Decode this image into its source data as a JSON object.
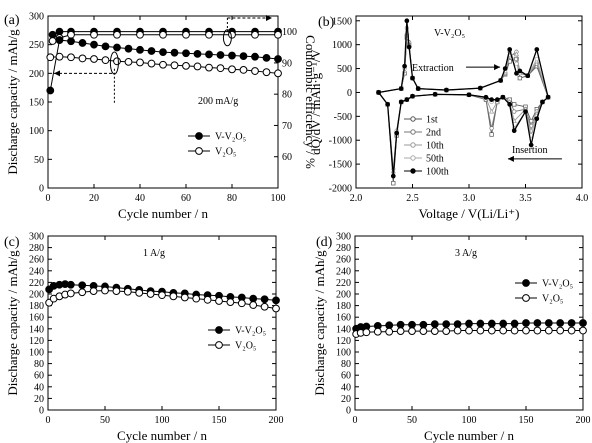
{
  "figure": {
    "chart_data": [
      {
        "id": "a",
        "panel_label": "(a)",
        "type": "scatter",
        "x_title": "Cycle number / n",
        "y_title": "Discharge capacity / mAh/g",
        "y2_title": "Coulombic efficiency / %",
        "rate_label": "200 mA/g",
        "xlim": [
          0,
          100
        ],
        "ylim": [
          0,
          300
        ],
        "y2lim": [
          50,
          105
        ],
        "xticks": [
          "0",
          "20",
          "40",
          "60",
          "80",
          "100"
        ],
        "yticks": [
          "0",
          "50",
          "100",
          "150",
          "200",
          "250",
          "300"
        ],
        "y2ticks": [
          "60",
          "70",
          "80",
          "90",
          "100"
        ],
        "grid": false,
        "legend_position": "lower-right",
        "series": [
          {
            "name": "V-V2O5",
            "legend_label": "V-V₂O₅",
            "marker": "filled",
            "x": [
              1,
              5,
              10,
              15,
              20,
              25,
              30,
              35,
              40,
              45,
              50,
              55,
              60,
              65,
              70,
              75,
              80,
              85,
              90,
              95,
              100
            ],
            "y": [
              170,
              258,
              256,
              253,
              250,
              247,
              245,
              243,
              241,
              239,
              237,
              236,
              235,
              234,
              233,
              232,
              231,
              230,
              229,
              227,
              225
            ]
          },
          {
            "name": "V2O5",
            "legend_label": "V₂O₅",
            "marker": "open",
            "x": [
              1,
              5,
              10,
              15,
              20,
              25,
              30,
              35,
              40,
              45,
              50,
              55,
              60,
              65,
              70,
              75,
              80,
              85,
              90,
              95,
              100
            ],
            "y": [
              228,
              229,
              228,
              226,
              225,
              223,
              221,
              220,
              219,
              217,
              215,
              214,
              213,
              212,
              210,
              209,
              207,
              206,
              204,
              202,
              200
            ]
          }
        ],
        "efficiency_series": [
          {
            "name": "V-V2O5 efficiency",
            "marker": "filled",
            "axis": "right",
            "x": [
              2,
              5,
              10,
              20,
              30,
              40,
              50,
              60,
              70,
              80,
              90,
              100
            ],
            "y": [
              99,
              100,
              100,
              100,
              100,
              100,
              100,
              100,
              100,
              100,
              100,
              100
            ]
          },
          {
            "name": "V2O5 efficiency",
            "marker": "open",
            "axis": "right",
            "x": [
              2,
              5,
              10,
              20,
              30,
              40,
              50,
              60,
              70,
              80,
              90,
              100
            ],
            "y": [
              97,
              98,
              99,
              99,
              99,
              99,
              99,
              99,
              99,
              99,
              99,
              99
            ]
          }
        ],
        "arrows": [
          {
            "direction": "left",
            "points_to": "left axis",
            "from_x": 28,
            "y": 200
          },
          {
            "direction": "right",
            "points_to": "right axis",
            "from_x": 78,
            "y": 100
          }
        ]
      },
      {
        "id": "b",
        "panel_label": "(b)",
        "type": "line",
        "title": "V-V₂O₅",
        "x_title": "Voltage / V(Li/Li⁺)",
        "y_title": "dQ/dV / mAh·g⁻¹/V",
        "xlim": [
          2.0,
          4.0
        ],
        "ylim": [
          -2000,
          1600
        ],
        "xticks": [
          "2.0",
          "2.5",
          "3.0",
          "3.5",
          "4.0"
        ],
        "yticks": [
          "-2000",
          "-1500",
          "-1000",
          "-500",
          "0",
          "500",
          "1000",
          "1500"
        ],
        "grid": false,
        "legend_position": "lower-left",
        "annotations": [
          {
            "text": "Extraction",
            "x": 2.85,
            "y": 530
          },
          {
            "text": "Insertion",
            "x": 3.38,
            "y": -1180
          }
        ],
        "series": [
          {
            "name": "1st",
            "x": [
              2.2,
              2.28,
              2.33,
              2.36,
              2.4,
              2.45,
              2.5,
              2.7,
              3.0,
              3.15,
              3.2,
              3.25,
              3.3,
              3.36,
              3.4,
              3.5,
              3.55,
              3.6,
              3.65,
              3.7,
              3.6,
              3.52,
              3.45,
              3.42,
              3.36,
              3.32,
              3.28,
              3.1,
              2.8,
              2.55,
              2.5,
              2.47,
              2.45,
              2.43,
              2.4,
              2.2
            ],
            "y": [
              0,
              -250,
              -1900,
              -900,
              -200,
              -150,
              -80,
              -40,
              -50,
              -150,
              -880,
              -200,
              -100,
              -150,
              -250,
              -300,
              -600,
              -350,
              -200,
              -100,
              550,
              350,
              300,
              700,
              650,
              380,
              250,
              90,
              50,
              80,
              300,
              1000,
              1150,
              400,
              80,
              0
            ]
          },
          {
            "name": "2nd",
            "x": [
              2.2,
              2.28,
              2.33,
              2.36,
              2.4,
              2.45,
              2.5,
              2.7,
              3.0,
              3.15,
              3.2,
              3.25,
              3.3,
              3.36,
              3.4,
              3.5,
              3.55,
              3.6,
              3.65,
              3.7,
              3.6,
              3.52,
              3.45,
              3.42,
              3.36,
              3.32,
              3.28,
              3.1,
              2.8,
              2.55,
              2.5,
              2.47,
              2.45,
              2.43,
              2.4,
              2.2
            ],
            "y": [
              0,
              -250,
              -1750,
              -850,
              -200,
              -150,
              -80,
              -40,
              -50,
              -150,
              -750,
              -200,
              -100,
              -150,
              -400,
              -350,
              -700,
              -400,
              -200,
              -100,
              600,
              350,
              400,
              850,
              750,
              400,
              250,
              90,
              50,
              80,
              300,
              1050,
              1200,
              400,
              80,
              0
            ]
          },
          {
            "name": "10th",
            "x": [
              2.2,
              2.28,
              2.33,
              2.36,
              2.4,
              2.45,
              2.5,
              2.7,
              3.0,
              3.15,
              3.2,
              3.25,
              3.3,
              3.36,
              3.4,
              3.5,
              3.55,
              3.6,
              3.65,
              3.7,
              3.6,
              3.52,
              3.45,
              3.42,
              3.36,
              3.32,
              3.28,
              3.1,
              2.8,
              2.55,
              2.5,
              2.47,
              2.45,
              2.43,
              2.4,
              2.2
            ],
            "y": [
              0,
              -250,
              -1650,
              -800,
              -200,
              -150,
              -80,
              -40,
              -50,
              -120,
              -400,
              -200,
              -100,
              -200,
              -600,
              -350,
              -800,
              -450,
              -200,
              -100,
              650,
              350,
              450,
              800,
              780,
              420,
              250,
              90,
              50,
              80,
              300,
              1000,
              1250,
              450,
              80,
              0
            ]
          },
          {
            "name": "50th",
            "x": [
              2.2,
              2.28,
              2.33,
              2.36,
              2.4,
              2.45,
              2.5,
              2.7,
              3.0,
              3.15,
              3.2,
              3.25,
              3.3,
              3.36,
              3.4,
              3.5,
              3.55,
              3.6,
              3.65,
              3.7,
              3.6,
              3.52,
              3.45,
              3.42,
              3.36,
              3.32,
              3.28,
              3.1,
              2.8,
              2.55,
              2.5,
              2.47,
              2.45,
              2.43,
              2.4,
              2.2
            ],
            "y": [
              0,
              -250,
              -1600,
              -800,
              -200,
              -150,
              -80,
              -40,
              -50,
              -100,
              -200,
              -150,
              -100,
              -250,
              -750,
              -400,
              -900,
              -500,
              -200,
              -100,
              700,
              350,
              450,
              600,
              850,
              450,
              250,
              90,
              50,
              80,
              300,
              950,
              1350,
              500,
              80,
              0
            ]
          },
          {
            "name": "100th",
            "x": [
              2.2,
              2.28,
              2.33,
              2.36,
              2.4,
              2.45,
              2.5,
              2.7,
              3.0,
              3.15,
              3.2,
              3.25,
              3.3,
              3.36,
              3.4,
              3.5,
              3.55,
              3.6,
              3.65,
              3.7,
              3.6,
              3.52,
              3.45,
              3.42,
              3.36,
              3.32,
              3.28,
              3.1,
              2.8,
              2.55,
              2.5,
              2.47,
              2.45,
              2.43,
              2.4,
              2.2
            ],
            "y": [
              0,
              -250,
              -1750,
              -850,
              -200,
              -150,
              -80,
              -40,
              -50,
              -100,
              -150,
              -150,
              -100,
              -250,
              -800,
              -400,
              -1100,
              -550,
              -200,
              -100,
              900,
              350,
              450,
              400,
              900,
              500,
              250,
              90,
              50,
              80,
              300,
              950,
              1500,
              550,
              80,
              0
            ]
          }
        ]
      },
      {
        "id": "c",
        "panel_label": "(c)",
        "type": "scatter",
        "x_title": "Cycle number / n",
        "y_title": "Discharge capacity / mAh/g",
        "rate_label": "1 A/g",
        "xlim": [
          0,
          200
        ],
        "ylim": [
          0,
          300
        ],
        "xticks": [
          "0",
          "50",
          "100",
          "150",
          "200"
        ],
        "yticks": [
          "0",
          "20",
          "40",
          "60",
          "80",
          "100",
          "120",
          "140",
          "160",
          "180",
          "200",
          "220",
          "240",
          "260",
          "280",
          "300"
        ],
        "grid": false,
        "legend_position": "center-right",
        "series": [
          {
            "name": "V-V2O5",
            "legend_label": "V-V₂O₅",
            "marker": "filled",
            "x": [
              1,
              5,
              10,
              15,
              20,
              30,
              40,
              50,
              60,
              70,
              80,
              90,
              100,
              110,
              120,
              130,
              140,
              150,
              160,
              170,
              180,
              190,
              200
            ],
            "y": [
              208,
              214,
              216,
              217,
              216,
              215,
              214,
              213,
              211,
              209,
              207,
              205,
              204,
              202,
              201,
              199,
              198,
              197,
              195,
              194,
              192,
              191,
              189
            ]
          },
          {
            "name": "V2O5",
            "legend_label": "V₂O₅",
            "marker": "open",
            "x": [
              1,
              5,
              10,
              15,
              20,
              30,
              40,
              50,
              60,
              70,
              80,
              90,
              100,
              110,
              120,
              130,
              140,
              150,
              160,
              170,
              180,
              190,
              200
            ],
            "y": [
              185,
              192,
              196,
              199,
              201,
              203,
              205,
              206,
              205,
              204,
              202,
              200,
              198,
              196,
              194,
              192,
              190,
              188,
              186,
              184,
              181,
              178,
              175
            ]
          }
        ]
      },
      {
        "id": "d",
        "panel_label": "(d)",
        "type": "scatter",
        "x_title": "Cycle number / n",
        "y_title": "Discharge capacity / mAh/g",
        "rate_label": "3 A/g",
        "xlim": [
          0,
          200
        ],
        "ylim": [
          0,
          300
        ],
        "xticks": [
          "0",
          "50",
          "100",
          "150",
          "200"
        ],
        "yticks": [
          "0",
          "20",
          "40",
          "60",
          "80",
          "100",
          "120",
          "140",
          "160",
          "180",
          "200",
          "220",
          "240",
          "260",
          "280",
          "300"
        ],
        "grid": false,
        "legend_position": "upper-right",
        "series": [
          {
            "name": "V-V2O5",
            "legend_label": "V-V₂O₅",
            "marker": "filled",
            "x": [
              1,
              5,
              10,
              20,
              30,
              40,
              50,
              60,
              70,
              80,
              90,
              100,
              110,
              120,
              130,
              140,
              150,
              160,
              170,
              180,
              190,
              200
            ],
            "y": [
              140,
              143,
              144,
              145,
              146,
              147,
              147,
              147,
              148,
              148,
              148,
              149,
              149,
              149,
              149,
              149,
              150,
              150,
              150,
              150,
              150,
              150
            ]
          },
          {
            "name": "V2O5",
            "legend_label": "V₂O₅",
            "marker": "open",
            "x": [
              1,
              5,
              10,
              20,
              30,
              40,
              50,
              60,
              70,
              80,
              90,
              100,
              110,
              120,
              130,
              140,
              150,
              160,
              170,
              180,
              190,
              200
            ],
            "y": [
              131,
              133,
              134,
              135,
              135,
              136,
              136,
              136,
              136,
              136,
              137,
              137,
              137,
              137,
              137,
              137,
              137,
              137,
              137,
              137,
              137,
              137
            ]
          }
        ]
      }
    ]
  }
}
